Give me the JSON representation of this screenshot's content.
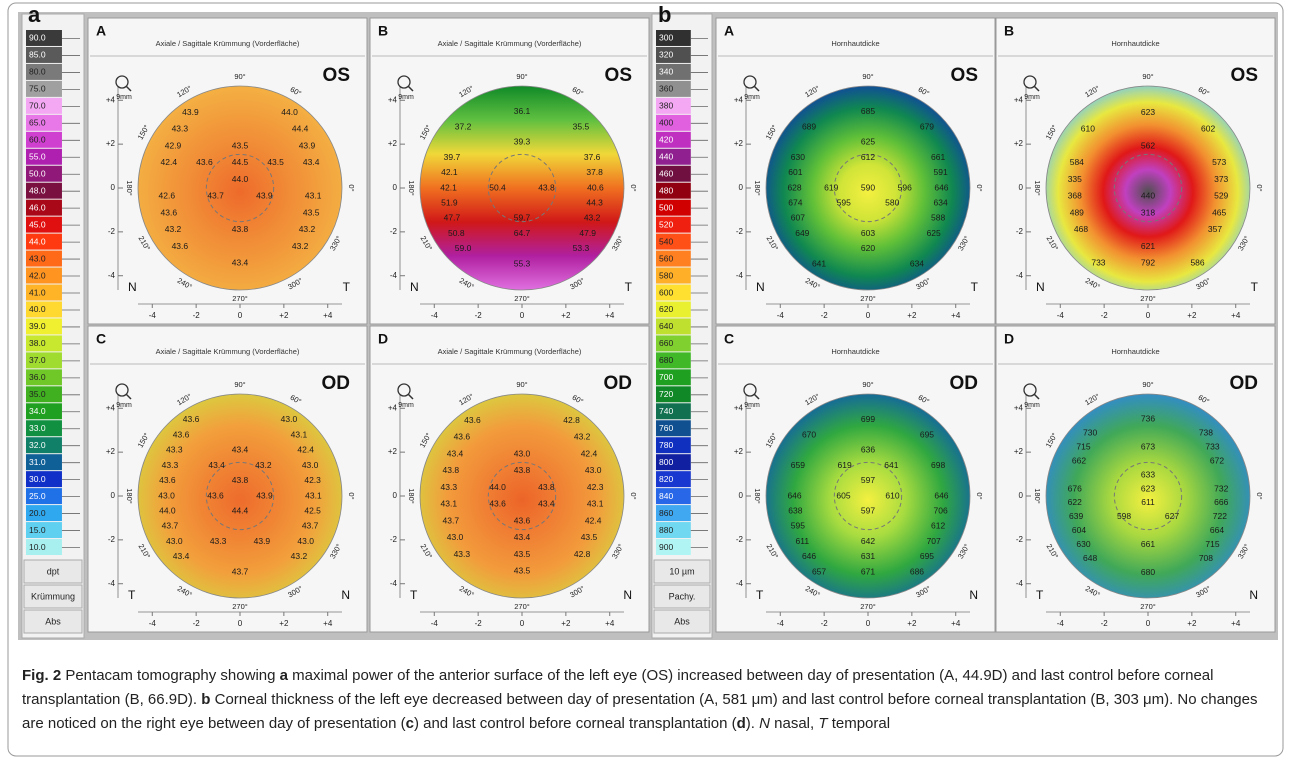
{
  "figure": {
    "scales": [
      {
        "letter": "a",
        "labels": [
          "90.0",
          "85.0",
          "80.0",
          "75.0",
          "70.0",
          "65.0",
          "60.0",
          "55.0",
          "50.0",
          "48.0",
          "46.0",
          "45.0",
          "44.0",
          "43.0",
          "42.0",
          "41.0",
          "40.0",
          "39.0",
          "38.0",
          "37.0",
          "36.0",
          "35.0",
          "34.0",
          "33.0",
          "32.0",
          "31.0",
          "30.0",
          "25.0",
          "20.0",
          "15.0",
          "10.0"
        ],
        "colors": [
          "#3a3a3a",
          "#5a5a5a",
          "#7a7a7a",
          "#a0a0a0",
          "#f4a8f4",
          "#e878e8",
          "#d040d0",
          "#b020b0",
          "#901878",
          "#7a1040",
          "#a80818",
          "#e01010",
          "#ff3a10",
          "#ff6a18",
          "#ff9420",
          "#ffb428",
          "#ffd830",
          "#f0f030",
          "#c8e830",
          "#a0dc30",
          "#70c828",
          "#40b020",
          "#20a020",
          "#109040",
          "#108068",
          "#106098",
          "#1030c8",
          "#2070e8",
          "#30a8f0",
          "#60d0f0",
          "#a8f0f0"
        ],
        "footer": [
          "dpt",
          "Krümmung",
          "Abs"
        ]
      },
      {
        "letter": "b",
        "labels": [
          "300",
          "320",
          "340",
          "360",
          "380",
          "400",
          "420",
          "440",
          "460",
          "480",
          "500",
          "520",
          "540",
          "560",
          "580",
          "600",
          "620",
          "640",
          "660",
          "680",
          "700",
          "720",
          "740",
          "760",
          "780",
          "800",
          "820",
          "840",
          "860",
          "880",
          "900"
        ],
        "colors": [
          "#303030",
          "#505050",
          "#707070",
          "#909090",
          "#f4a8f4",
          "#e060e0",
          "#c030c0",
          "#902090",
          "#701040",
          "#900010",
          "#d00000",
          "#f02010",
          "#ff5018",
          "#ff8020",
          "#ffb028",
          "#ffe030",
          "#e8f030",
          "#c0e030",
          "#80d030",
          "#40b828",
          "#20a020",
          "#108828",
          "#107050",
          "#105090",
          "#1030c0",
          "#1020a0",
          "#1838d0",
          "#2868e8",
          "#40a8f0",
          "#70d8f0",
          "#b0f4f4"
        ],
        "footer": [
          "10 µm",
          "Pachy.",
          "Abs"
        ]
      }
    ],
    "panel_axes": {
      "ticks_x": [
        "-4",
        "-2",
        "0",
        "+2",
        "+4"
      ],
      "ticks_y": [
        "+4",
        "+2",
        "0",
        "-2",
        "-4"
      ],
      "angles": [
        "90°",
        "60°",
        "0°",
        "330°",
        "300°",
        "270°",
        "240°",
        "210°",
        "180°",
        "150°",
        "120°"
      ],
      "zoom": "9mm"
    },
    "panels": [
      {
        "letter": "A",
        "header": "Axiale / Sagittale Krümmung (Vorderfläche)",
        "eye": "OS",
        "left": "N",
        "right": "T",
        "fill": {
          "kind": "radial",
          "stops": [
            "#ee6a2a",
            "#f08434",
            "#f29c3c",
            "#f4b444"
          ]
        },
        "rows": [
          [
            "43.9",
            "44.0"
          ],
          [
            "43.3",
            "44.4"
          ],
          [
            "42.9",
            "43.5",
            "43.9"
          ],
          [
            "42.4",
            "43.6",
            "44.5",
            "43.5",
            "43.4"
          ],
          [
            "44.0"
          ],
          [
            "42.6",
            "43.7",
            "43.9",
            "43.1"
          ],
          [
            "43.6",
            "43.5"
          ],
          [
            "43.2",
            "43.8",
            "43.2"
          ],
          [
            "43.6",
            "43.2"
          ],
          [
            "43.4"
          ]
        ]
      },
      {
        "letter": "B",
        "header": "Axiale / Sagittale Krümmung (Vorderfläche)",
        "eye": "OS",
        "left": "N",
        "right": "T",
        "fill": {
          "kind": "linear",
          "stops": [
            "#108a28",
            "#60c040",
            "#f0d838",
            "#f07020",
            "#d01818",
            "#b020a0",
            "#e070e0"
          ]
        },
        "rows": [
          [
            "36.1"
          ],
          [
            "37.2",
            "35.5"
          ],
          [
            "39.3"
          ],
          [
            "39.7",
            "37.6"
          ],
          [
            "42.1",
            "37.8"
          ],
          [
            "42.1",
            "50.4",
            "43.8",
            "40.6"
          ],
          [
            "51.9",
            "44.3"
          ],
          [
            "47.7",
            "59.7",
            "43.2"
          ],
          [
            "50.8",
            "64.7",
            "47.9"
          ],
          [
            "59.0",
            "53.3"
          ],
          [
            "55.3"
          ]
        ]
      },
      {
        "letter": "C",
        "header": "Axiale / Sagittale Krümmung (Vorderfläche)",
        "eye": "OD",
        "left": "T",
        "right": "N",
        "fill": {
          "kind": "radial",
          "stops": [
            "#ee6c2c",
            "#f08434",
            "#f2a03c",
            "#d8d040"
          ]
        },
        "rows": [
          [
            "43.6",
            "43.0"
          ],
          [
            "43.6",
            "43.1"
          ],
          [
            "43.3",
            "43.4",
            "42.4"
          ],
          [
            "43.3",
            "43.4",
            "43.2",
            "43.0"
          ],
          [
            "43.6",
            "43.8",
            "42.3"
          ],
          [
            "43.0",
            "43.6",
            "43.9",
            "43.1"
          ],
          [
            "44.0",
            "44.4",
            "42.5"
          ],
          [
            "43.7",
            "43.7"
          ],
          [
            "43.0",
            "43.3",
            "43.9",
            "43.0"
          ],
          [
            "43.4",
            "43.2"
          ],
          [
            "43.7"
          ]
        ]
      },
      {
        "letter": "D",
        "header": "Axiale / Sagittale Krümmung (Vorderfläche)",
        "eye": "OD",
        "left": "T",
        "right": "N",
        "fill": {
          "kind": "radial",
          "stops": [
            "#ec6428",
            "#f08034",
            "#f29c3c",
            "#d8d040"
          ]
        },
        "rows": [
          [
            "43.6",
            "42.8"
          ],
          [
            "43.6",
            "43.2"
          ],
          [
            "43.4",
            "43.0",
            "42.4"
          ],
          [
            "43.8",
            "43.8",
            "43.0"
          ],
          [
            "43.3",
            "44.0",
            "43.8",
            "42.3"
          ],
          [
            "43.1",
            "43.6",
            "43.4",
            "43.1"
          ],
          [
            "43.7",
            "43.6",
            "42.4"
          ],
          [
            "43.0",
            "43.4",
            "43.5"
          ],
          [
            "43.3",
            "43.5",
            "42.8"
          ],
          [
            "43.5"
          ]
        ]
      },
      {
        "letter": "A",
        "header": "Hornhautdicke",
        "eye": "OS",
        "left": "N",
        "right": "T",
        "fill": {
          "kind": "radial",
          "stops": [
            "#f4f040",
            "#d0e438",
            "#60c038",
            "#108850",
            "#1040a8"
          ]
        },
        "rows": [
          [
            "685"
          ],
          [
            "689",
            "679"
          ],
          [
            "625"
          ],
          [
            "630",
            "612",
            "661"
          ],
          [
            "601",
            "591"
          ],
          [
            "628",
            "619",
            "590",
            "596",
            "646"
          ],
          [
            "674",
            "595",
            "580",
            "634"
          ],
          [
            "607",
            "588"
          ],
          [
            "649",
            "603",
            "625"
          ],
          [
            "620"
          ],
          [
            "641",
            "634"
          ]
        ]
      },
      {
        "letter": "B",
        "header": "Hornhautdicke",
        "eye": "OS",
        "left": "N",
        "right": "T",
        "fill": {
          "kind": "radial",
          "stops": [
            "#505050",
            "#c040c0",
            "#e01818",
            "#f29030",
            "#e8e840",
            "#70c8f0"
          ]
        },
        "rows": [
          [
            "623"
          ],
          [
            "610",
            "602"
          ],
          [
            "562"
          ],
          [
            "584",
            "573"
          ],
          [
            "335",
            "373"
          ],
          [
            "368",
            "440",
            "529"
          ],
          [
            "489",
            "318",
            "465"
          ],
          [
            "468",
            "357"
          ],
          [
            "621"
          ],
          [
            "733",
            "792",
            "586"
          ]
        ]
      },
      {
        "letter": "C",
        "header": "Hornhautdicke",
        "eye": "OD",
        "left": "T",
        "right": "N",
        "fill": {
          "kind": "radial",
          "stops": [
            "#f4f040",
            "#a8dc40",
            "#30a840",
            "#1060a8"
          ]
        },
        "rows": [
          [
            "699"
          ],
          [
            "670",
            "695"
          ],
          [
            "636"
          ],
          [
            "659",
            "619",
            "641",
            "698"
          ],
          [
            "597"
          ],
          [
            "646",
            "605",
            "610",
            "646"
          ],
          [
            "638",
            "597",
            "706"
          ],
          [
            "595",
            "612"
          ],
          [
            "611",
            "642",
            "707"
          ],
          [
            "646",
            "631",
            "695"
          ],
          [
            "657",
            "671",
            "686"
          ]
        ]
      },
      {
        "letter": "D",
        "header": "Hornhautdicke",
        "eye": "OD",
        "left": "T",
        "right": "N",
        "fill": {
          "kind": "radial",
          "stops": [
            "#f4f040",
            "#a8d840",
            "#40a858",
            "#3088d8"
          ]
        },
        "rows": [
          [
            "736"
          ],
          [
            "730",
            "738"
          ],
          [
            "715",
            "673",
            "733"
          ],
          [
            "662",
            "672"
          ],
          [
            "633"
          ],
          [
            "676",
            "623",
            "732"
          ],
          [
            "622",
            "611",
            "666"
          ],
          [
            "639",
            "598",
            "627",
            "722"
          ],
          [
            "604",
            "664"
          ],
          [
            "630",
            "661",
            "715"
          ],
          [
            "648",
            "708"
          ],
          [
            "680"
          ]
        ]
      }
    ]
  },
  "caption": {
    "runs": [
      {
        "text": "Fig. 2",
        "style": "bold"
      },
      {
        "text": " Pentacam tomography showing "
      },
      {
        "text": "a",
        "style": "bold"
      },
      {
        "text": " maximal power of the anterior surface of the left eye (OS) increased between day of presentation (A, 44.9D) and last control before corneal transplantation (B, 66.9D). "
      },
      {
        "text": "b",
        "style": "bold"
      },
      {
        "text": " Corneal thickness of the left eye decreased between day of presentation (A, 581 μm) and last control before corneal transplantation (B, 303 μm). No changes are noticed on the right eye between day of presentation ("
      },
      {
        "text": "c",
        "style": "bold"
      },
      {
        "text": ") and last control before corneal transplantation ("
      },
      {
        "text": "d",
        "style": "bold"
      },
      {
        "text": "). "
      },
      {
        "text": "N",
        "style": "italic"
      },
      {
        "text": " nasal, "
      },
      {
        "text": "T",
        "style": "italic"
      },
      {
        "text": " temporal"
      }
    ]
  }
}
